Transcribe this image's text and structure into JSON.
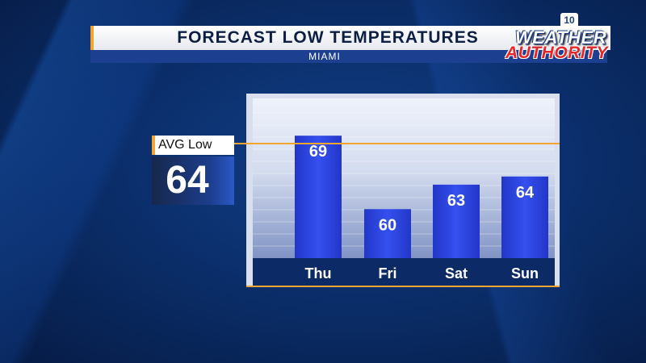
{
  "header": {
    "title": "FORECAST LOW TEMPERATURES",
    "subtitle": "MIAMI"
  },
  "logo": {
    "badge": "10",
    "line1": "WEATHER",
    "line2": "AUTHORITY"
  },
  "average": {
    "label": "AVG Low",
    "value": "64"
  },
  "colors": {
    "bar": "#2e47e0",
    "accent": "#f2a531",
    "panel": "#1c3f8f"
  },
  "chart_data": {
    "type": "bar",
    "title": "FORECAST LOW TEMPERATURES",
    "subtitle": "MIAMI",
    "categories": [
      "Thu",
      "Fri",
      "Sat",
      "Sun"
    ],
    "values": [
      69,
      60,
      63,
      64
    ],
    "reference_line": {
      "label": "AVG Low",
      "value": 64
    },
    "data_labels": true,
    "ylim": [
      54,
      72
    ],
    "grid": true,
    "legend": "none"
  }
}
